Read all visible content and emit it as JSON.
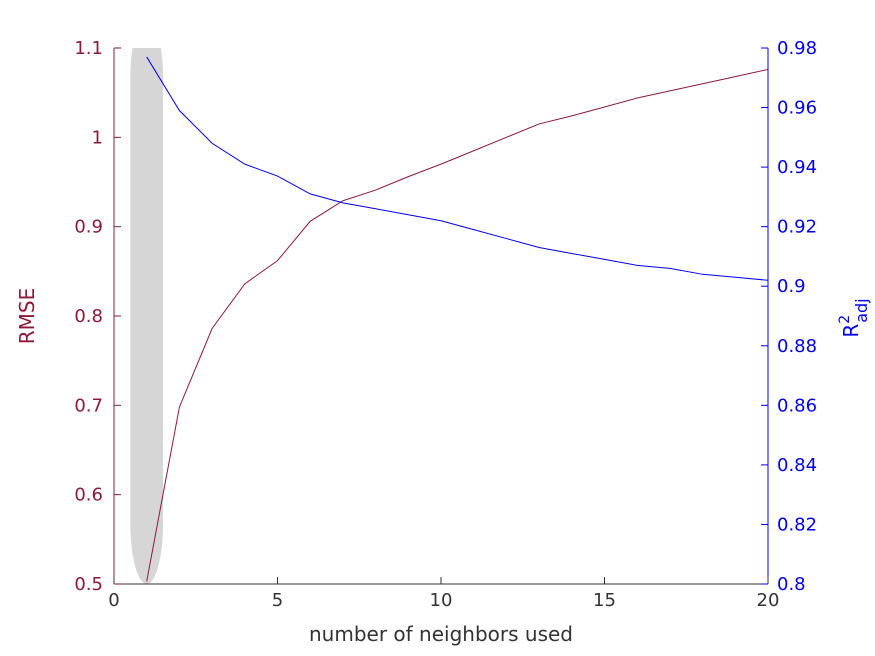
{
  "chart_data": {
    "type": "line",
    "xlabel": "number of neighbors used",
    "ylabel_left": "RMSE",
    "ylabel_right": {
      "base": "R",
      "sup": "2",
      "sub": "adj"
    },
    "xlim": [
      0,
      20
    ],
    "ylim_left": [
      0.5,
      1.1
    ],
    "ylim_right": [
      0.8,
      0.98
    ],
    "x_ticks": [
      0,
      5,
      10,
      15,
      20
    ],
    "x_tick_labels": [
      "0",
      "5",
      "10",
      "15",
      "20"
    ],
    "y_left_ticks": [
      0.5,
      0.6,
      0.7,
      0.8,
      0.9,
      1.0,
      1.1
    ],
    "y_left_tick_labels": [
      "0.5",
      "0.6",
      "0.7",
      "0.8",
      "0.9",
      "1",
      "1.1"
    ],
    "y_right_ticks": [
      0.8,
      0.82,
      0.84,
      0.86,
      0.88,
      0.9,
      0.92,
      0.94,
      0.96,
      0.98
    ],
    "y_right_tick_labels": [
      "0.8",
      "0.82",
      "0.84",
      "0.86",
      "0.88",
      "0.9",
      "0.92",
      "0.94",
      "0.96",
      "0.98"
    ],
    "highlight_band": {
      "x_center": 1,
      "x_half_width": 0.5,
      "color": "#d6d6d6"
    },
    "grid": false,
    "series": [
      {
        "axis": "left",
        "color": "#8b1a3a",
        "x": [
          1,
          2,
          3,
          4,
          5,
          6,
          7,
          8,
          9,
          10,
          11,
          12,
          13,
          14,
          15,
          16,
          17,
          18,
          19,
          20
        ],
        "values": [
          0.503,
          0.698,
          0.786,
          0.836,
          0.862,
          0.906,
          0.929,
          0.941,
          0.956,
          0.97,
          0.985,
          1.0,
          1.015,
          1.024,
          1.034,
          1.044,
          1.052,
          1.06,
          1.068,
          1.076
        ]
      },
      {
        "axis": "right",
        "color": "#0000ee",
        "x": [
          1,
          2,
          3,
          4,
          5,
          6,
          7,
          8,
          9,
          10,
          11,
          12,
          13,
          14,
          15,
          16,
          17,
          18,
          19,
          20
        ],
        "values": [
          0.977,
          0.959,
          0.948,
          0.941,
          0.937,
          0.931,
          0.928,
          0.926,
          0.924,
          0.922,
          0.919,
          0.916,
          0.913,
          0.911,
          0.909,
          0.907,
          0.906,
          0.904,
          0.903,
          0.902
        ]
      }
    ]
  }
}
